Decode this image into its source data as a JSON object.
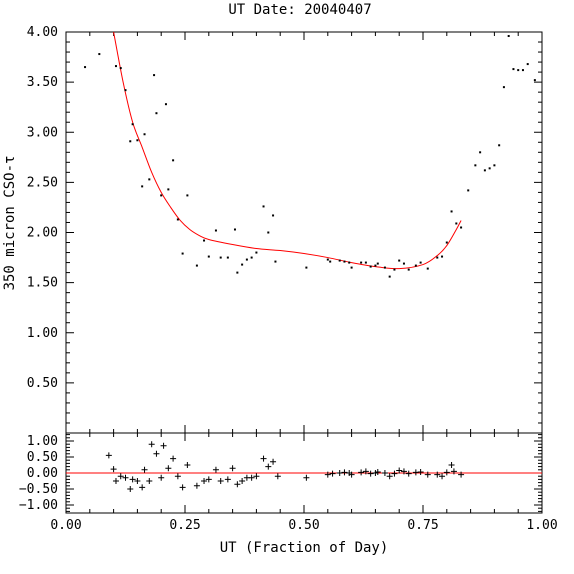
{
  "chart_data": [
    {
      "type": "scatter",
      "panel": "main",
      "title": "UT Date: 20040407",
      "ylabel": "350 micron CSO-τ",
      "xlim": [
        0,
        1
      ],
      "ylim": [
        0,
        4
      ],
      "yticks": [
        {
          "value": 0.5,
          "label": "0.50"
        },
        {
          "value": 1.0,
          "label": "1.00"
        },
        {
          "value": 1.5,
          "label": "1.50"
        },
        {
          "value": 2.0,
          "label": "2.00"
        },
        {
          "value": 2.5,
          "label": "2.50"
        },
        {
          "value": 3.0,
          "label": "3.00"
        },
        {
          "value": 3.5,
          "label": "3.50"
        },
        {
          "value": 4.0,
          "label": "4.00"
        }
      ],
      "series": [
        {
          "kind": "points",
          "color": "#000000",
          "points": [
            [
              0.04,
              3.65
            ],
            [
              0.07,
              3.78
            ],
            [
              0.105,
              3.66
            ],
            [
              0.115,
              3.64
            ],
            [
              0.125,
              3.42
            ],
            [
              0.135,
              2.91
            ],
            [
              0.14,
              3.08
            ],
            [
              0.15,
              2.92
            ],
            [
              0.16,
              2.46
            ],
            [
              0.165,
              2.98
            ],
            [
              0.175,
              2.53
            ],
            [
              0.185,
              3.57
            ],
            [
              0.19,
              3.19
            ],
            [
              0.2,
              2.37
            ],
            [
              0.21,
              3.28
            ],
            [
              0.215,
              2.43
            ],
            [
              0.225,
              2.72
            ],
            [
              0.235,
              2.13
            ],
            [
              0.245,
              1.79
            ],
            [
              0.255,
              2.37
            ],
            [
              0.275,
              1.67
            ],
            [
              0.29,
              1.92
            ],
            [
              0.3,
              1.76
            ],
            [
              0.315,
              2.02
            ],
            [
              0.325,
              1.75
            ],
            [
              0.34,
              1.75
            ],
            [
              0.355,
              2.03
            ],
            [
              0.36,
              1.6
            ],
            [
              0.37,
              1.68
            ],
            [
              0.38,
              1.73
            ],
            [
              0.39,
              1.75
            ],
            [
              0.4,
              1.8
            ],
            [
              0.415,
              2.26
            ],
            [
              0.425,
              2.0
            ],
            [
              0.435,
              2.17
            ],
            [
              0.44,
              1.71
            ],
            [
              0.505,
              1.65
            ],
            [
              0.55,
              1.73
            ],
            [
              0.555,
              1.71
            ],
            [
              0.575,
              1.72
            ],
            [
              0.585,
              1.71
            ],
            [
              0.595,
              1.7
            ],
            [
              0.6,
              1.65
            ],
            [
              0.62,
              1.7
            ],
            [
              0.63,
              1.7
            ],
            [
              0.64,
              1.66
            ],
            [
              0.65,
              1.67
            ],
            [
              0.655,
              1.69
            ],
            [
              0.67,
              1.65
            ],
            [
              0.68,
              1.56
            ],
            [
              0.69,
              1.63
            ],
            [
              0.7,
              1.72
            ],
            [
              0.71,
              1.69
            ],
            [
              0.72,
              1.63
            ],
            [
              0.735,
              1.67
            ],
            [
              0.745,
              1.7
            ],
            [
              0.76,
              1.64
            ],
            [
              0.78,
              1.75
            ],
            [
              0.79,
              1.76
            ],
            [
              0.8,
              1.9
            ],
            [
              0.81,
              2.21
            ],
            [
              0.82,
              2.09
            ],
            [
              0.83,
              2.05
            ],
            [
              0.845,
              2.42
            ],
            [
              0.86,
              2.67
            ],
            [
              0.87,
              2.8
            ],
            [
              0.88,
              2.62
            ],
            [
              0.89,
              2.64
            ],
            [
              0.9,
              2.67
            ],
            [
              0.91,
              2.87
            ],
            [
              0.92,
              3.45
            ],
            [
              0.93,
              3.96
            ],
            [
              0.94,
              3.63
            ],
            [
              0.95,
              3.62
            ],
            [
              0.96,
              3.62
            ],
            [
              0.97,
              3.68
            ],
            [
              0.985,
              3.52
            ]
          ]
        },
        {
          "kind": "fit-curve",
          "color": "#ff0000",
          "points": [
            [
              0.1,
              4.0
            ],
            [
              0.12,
              3.5
            ],
            [
              0.14,
              3.1
            ],
            [
              0.16,
              2.85
            ],
            [
              0.18,
              2.6
            ],
            [
              0.2,
              2.4
            ],
            [
              0.22,
              2.25
            ],
            [
              0.24,
              2.12
            ],
            [
              0.26,
              2.03
            ],
            [
              0.28,
              1.97
            ],
            [
              0.3,
              1.93
            ],
            [
              0.35,
              1.88
            ],
            [
              0.4,
              1.84
            ],
            [
              0.45,
              1.82
            ],
            [
              0.5,
              1.79
            ],
            [
              0.55,
              1.75
            ],
            [
              0.6,
              1.7
            ],
            [
              0.65,
              1.66
            ],
            [
              0.7,
              1.64
            ],
            [
              0.75,
              1.68
            ],
            [
              0.78,
              1.77
            ],
            [
              0.8,
              1.87
            ],
            [
              0.82,
              2.03
            ],
            [
              0.83,
              2.12
            ]
          ]
        }
      ]
    },
    {
      "type": "scatter",
      "panel": "residuals",
      "xlabel": "UT (Fraction of Day)",
      "xlim": [
        0,
        1
      ],
      "ylim": [
        -1.25,
        1.25
      ],
      "xticks": [
        {
          "value": 0.0,
          "label": "0.00"
        },
        {
          "value": 0.25,
          "label": "0.25"
        },
        {
          "value": 0.5,
          "label": "0.50"
        },
        {
          "value": 0.75,
          "label": "0.75"
        },
        {
          "value": 1.0,
          "label": "1.00"
        }
      ],
      "yticks": [
        {
          "value": -1.0,
          "label": "−1.00"
        },
        {
          "value": -0.5,
          "label": "−0.50"
        },
        {
          "value": 0.0,
          "label": "0.00"
        },
        {
          "value": 0.5,
          "label": "0.50"
        },
        {
          "value": 1.0,
          "label": "1.00"
        }
      ],
      "zero_line_color": "#ff0000",
      "series": [
        {
          "kind": "plus",
          "color": "#000000",
          "points": [
            [
              0.09,
              0.55
            ],
            [
              0.1,
              0.12
            ],
            [
              0.105,
              -0.25
            ],
            [
              0.115,
              -0.1
            ],
            [
              0.125,
              -0.15
            ],
            [
              0.135,
              -0.5
            ],
            [
              0.14,
              -0.2
            ],
            [
              0.15,
              -0.25
            ],
            [
              0.16,
              -0.45
            ],
            [
              0.165,
              0.1
            ],
            [
              0.175,
              -0.25
            ],
            [
              0.18,
              0.9
            ],
            [
              0.19,
              0.6
            ],
            [
              0.2,
              -0.15
            ],
            [
              0.205,
              0.85
            ],
            [
              0.215,
              0.15
            ],
            [
              0.225,
              0.45
            ],
            [
              0.235,
              -0.1
            ],
            [
              0.245,
              -0.45
            ],
            [
              0.255,
              0.25
            ],
            [
              0.275,
              -0.4
            ],
            [
              0.29,
              -0.25
            ],
            [
              0.3,
              -0.2
            ],
            [
              0.315,
              0.1
            ],
            [
              0.325,
              -0.25
            ],
            [
              0.34,
              -0.2
            ],
            [
              0.35,
              0.15
            ],
            [
              0.36,
              -0.35
            ],
            [
              0.37,
              -0.25
            ],
            [
              0.38,
              -0.15
            ],
            [
              0.39,
              -0.15
            ],
            [
              0.4,
              -0.1
            ],
            [
              0.415,
              0.45
            ],
            [
              0.425,
              0.2
            ],
            [
              0.435,
              0.35
            ],
            [
              0.445,
              -0.1
            ],
            [
              0.505,
              -0.15
            ],
            [
              0.55,
              -0.05
            ],
            [
              0.56,
              -0.02
            ],
            [
              0.575,
              0.0
            ],
            [
              0.585,
              0.02
            ],
            [
              0.595,
              0.0
            ],
            [
              0.6,
              -0.05
            ],
            [
              0.62,
              0.02
            ],
            [
              0.63,
              0.05
            ],
            [
              0.64,
              -0.02
            ],
            [
              0.65,
              0.0
            ],
            [
              0.655,
              0.03
            ],
            [
              0.67,
              0.0
            ],
            [
              0.68,
              -0.1
            ],
            [
              0.69,
              -0.02
            ],
            [
              0.7,
              0.08
            ],
            [
              0.71,
              0.05
            ],
            [
              0.72,
              -0.02
            ],
            [
              0.735,
              0.02
            ],
            [
              0.745,
              0.03
            ],
            [
              0.76,
              -0.05
            ],
            [
              0.78,
              -0.05
            ],
            [
              0.79,
              -0.1
            ],
            [
              0.8,
              0.02
            ],
            [
              0.81,
              0.25
            ],
            [
              0.815,
              0.05
            ],
            [
              0.83,
              -0.05
            ]
          ]
        }
      ]
    }
  ]
}
